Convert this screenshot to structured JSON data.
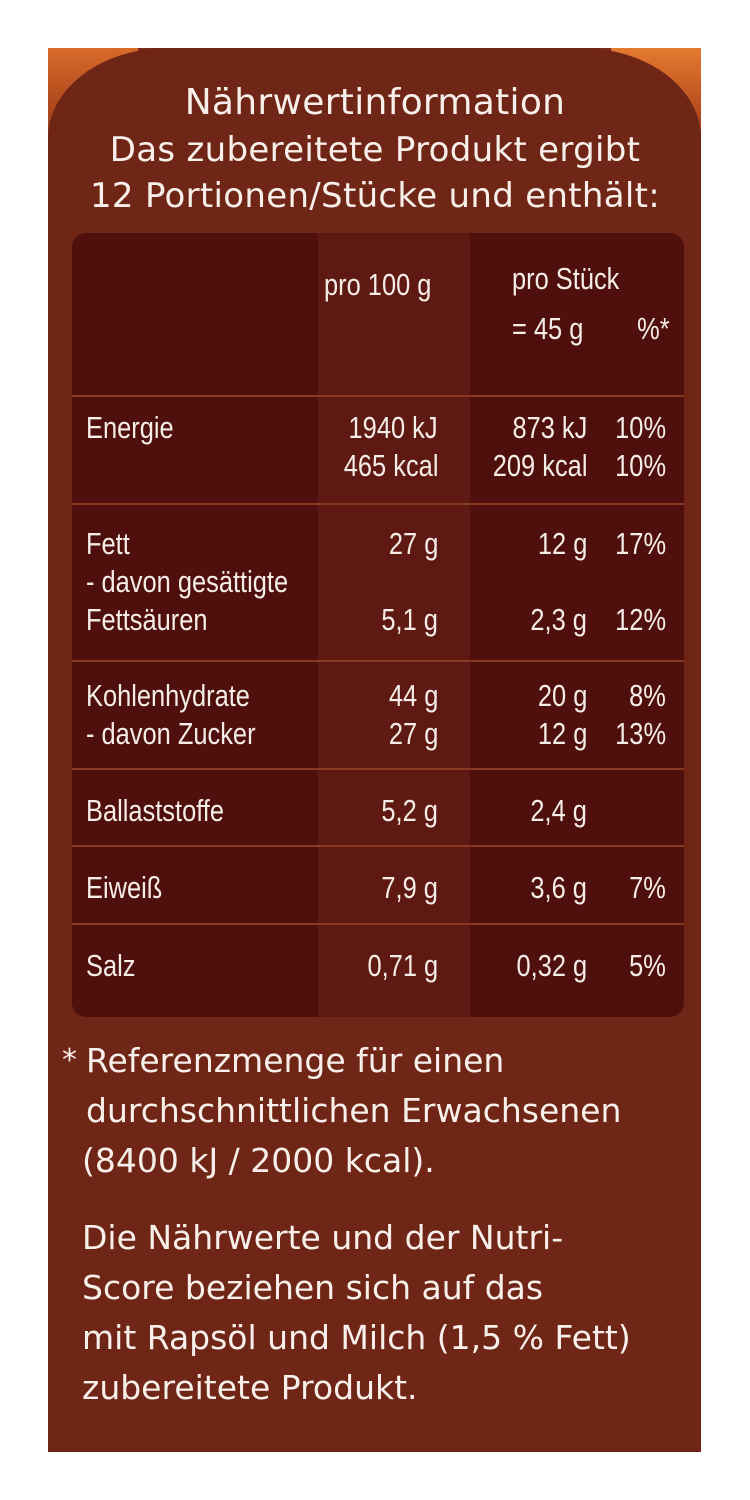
{
  "header": {
    "title": "Nährwertinformation",
    "line1": "Das zubereitete Produkt ergibt",
    "line2": "12 Portionen/Stücke und enthält:"
  },
  "table": {
    "col_per100": "pro 100 g",
    "col_perpiece": "pro Stück",
    "col_perpiece_sub": "= 45 g",
    "col_percent": "%*",
    "rows": {
      "energie": {
        "label": "Energie",
        "v100_1": "1940 kJ",
        "v100_2": "465 kcal",
        "vpc_1": "873 kJ",
        "vpc_2": "209 kcal",
        "pct_1": "10%",
        "pct_2": "10%"
      },
      "fett": {
        "label": "Fett",
        "v100": "27 g",
        "vpc": "12 g",
        "pct": "17%"
      },
      "gesaettigt": {
        "label1": "- davon gesättigte",
        "label2": "Fettsäuren",
        "v100": "5,1 g",
        "vpc": "2,3 g",
        "pct": "12%"
      },
      "kohlenhydrate": {
        "label": "Kohlenhydrate",
        "v100": "44 g",
        "vpc": "20 g",
        "pct": "8%"
      },
      "zucker": {
        "label": "- davon Zucker",
        "v100": "27 g",
        "vpc": "12 g",
        "pct": "13%"
      },
      "ballaststoffe": {
        "label": "Ballaststoffe",
        "v100": "5,2 g",
        "vpc": "2,4 g"
      },
      "eiweiss": {
        "label": "Eiweiß",
        "v100": "7,9 g",
        "vpc": "3,6 g",
        "pct": "7%"
      },
      "salz": {
        "label": "Salz",
        "v100": "0,71 g",
        "vpc": "0,32 g",
        "pct": "5%"
      }
    }
  },
  "footnote": {
    "star": "*",
    "ref1": "Referenzmenge für einen",
    "ref2": "durchschnittlichen Erwachsenen",
    "ref3": "(8400 kJ / 2000 kcal).",
    "note1": "Die Nährwerte und der Nutri-",
    "note2": "Score beziehen sich auf das",
    "note3": "mit Rapsöl und Milch (1,5 % Fett)",
    "note4": "zubereitete Produkt."
  },
  "colors": {
    "panel": "#6f2616",
    "table": "#4f0f0c",
    "table_mid_column": "#5e1a12",
    "divider": "#8a3a22",
    "text": "#f4ece6"
  }
}
